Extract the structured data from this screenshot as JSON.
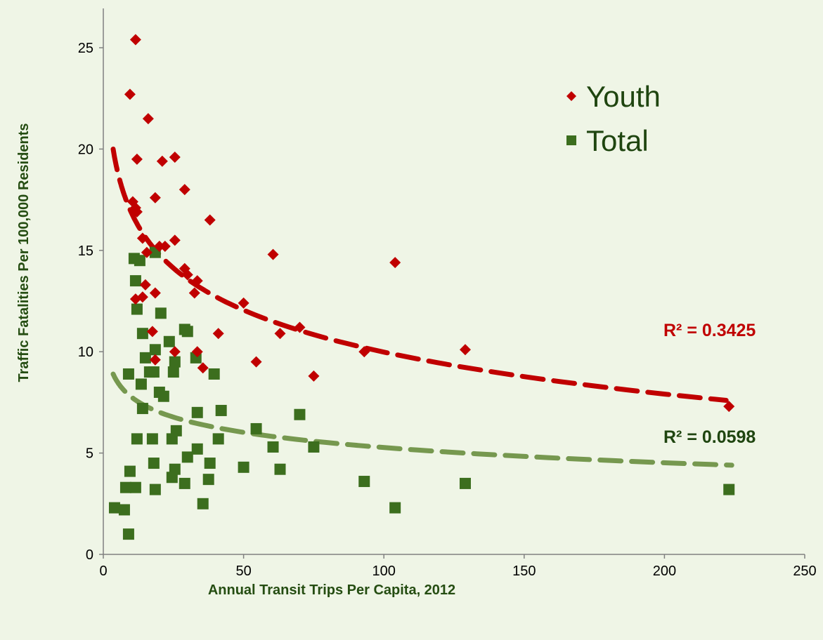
{
  "chart_data": {
    "type": "scatter",
    "xlabel": "Annual Transit Trips Per Capita, 2012",
    "ylabel": "Traffic Fatalities Per 100,000 Residents",
    "xlim": [
      0,
      250
    ],
    "ylim": [
      0,
      25
    ],
    "x_ticks": [
      "0",
      "50",
      "100",
      "150",
      "200",
      "250"
    ],
    "y_ticks": [
      "0",
      "5",
      "10",
      "15",
      "20",
      "25"
    ],
    "grid": false,
    "legend_position": "top-right",
    "series": [
      {
        "name": "Youth",
        "marker": "diamond",
        "color": "#c00000",
        "points": [
          [
            11.5,
            25.4
          ],
          [
            9.5,
            22.7
          ],
          [
            16,
            21.5
          ],
          [
            12,
            19.5
          ],
          [
            21,
            19.4
          ],
          [
            25.5,
            19.6
          ],
          [
            18.5,
            17.6
          ],
          [
            29,
            18.0
          ],
          [
            10.5,
            17.4
          ],
          [
            11.5,
            17.1
          ],
          [
            12,
            16.9
          ],
          [
            38,
            16.5
          ],
          [
            14,
            15.6
          ],
          [
            25.5,
            15.5
          ],
          [
            20,
            15.2
          ],
          [
            22,
            15.2
          ],
          [
            15.5,
            14.9
          ],
          [
            60.5,
            14.8
          ],
          [
            104,
            14.4
          ],
          [
            29,
            14.1
          ],
          [
            30,
            13.8
          ],
          [
            33.5,
            13.5
          ],
          [
            15,
            13.3
          ],
          [
            18.5,
            12.9
          ],
          [
            32.5,
            12.9
          ],
          [
            14,
            12.7
          ],
          [
            11.5,
            12.6
          ],
          [
            50,
            12.4
          ],
          [
            17.5,
            11.0
          ],
          [
            41,
            10.9
          ],
          [
            63,
            10.9
          ],
          [
            70,
            11.2
          ],
          [
            25.5,
            10.0
          ],
          [
            33.5,
            10.0
          ],
          [
            93,
            10.0
          ],
          [
            129,
            10.1
          ],
          [
            18.5,
            9.6
          ],
          [
            35.5,
            9.2
          ],
          [
            54.5,
            9.5
          ],
          [
            75,
            8.8
          ],
          [
            223,
            7.3
          ]
        ],
        "trendline": {
          "type": "logarithmic",
          "r_squared_label": "R² = 0.3425",
          "from_x": 3.5,
          "to_x": 222,
          "y_start": 20.0,
          "y_end": 7.6
        }
      },
      {
        "name": "Total",
        "marker": "square",
        "color": "#3c6e1e",
        "points": [
          [
            11,
            14.6
          ],
          [
            13,
            14.5
          ],
          [
            18.5,
            14.9
          ],
          [
            11.5,
            13.5
          ],
          [
            12,
            12.1
          ],
          [
            20.5,
            11.9
          ],
          [
            14,
            10.9
          ],
          [
            29,
            11.1
          ],
          [
            30,
            11.0
          ],
          [
            23.5,
            10.5
          ],
          [
            18.5,
            10.1
          ],
          [
            15,
            9.7
          ],
          [
            33,
            9.7
          ],
          [
            25.5,
            9.5
          ],
          [
            9,
            8.9
          ],
          [
            16.5,
            9.0
          ],
          [
            18,
            9.0
          ],
          [
            25,
            9.0
          ],
          [
            39.5,
            8.9
          ],
          [
            13.5,
            8.4
          ],
          [
            20,
            8.0
          ],
          [
            21.5,
            7.8
          ],
          [
            14,
            7.2
          ],
          [
            33.5,
            7.0
          ],
          [
            42,
            7.1
          ],
          [
            70,
            6.9
          ],
          [
            54.5,
            6.2
          ],
          [
            26,
            6.1
          ],
          [
            12,
            5.7
          ],
          [
            17.5,
            5.7
          ],
          [
            24.5,
            5.7
          ],
          [
            41,
            5.7
          ],
          [
            60.5,
            5.3
          ],
          [
            33.5,
            5.2
          ],
          [
            75,
            5.3
          ],
          [
            30,
            4.8
          ],
          [
            38,
            4.5
          ],
          [
            18,
            4.5
          ],
          [
            50,
            4.3
          ],
          [
            63,
            4.2
          ],
          [
            9.5,
            4.1
          ],
          [
            25.5,
            4.2
          ],
          [
            24.5,
            3.8
          ],
          [
            37.5,
            3.7
          ],
          [
            93,
            3.6
          ],
          [
            129,
            3.5
          ],
          [
            29,
            3.5
          ],
          [
            8,
            3.3
          ],
          [
            11.5,
            3.3
          ],
          [
            18.5,
            3.2
          ],
          [
            223,
            3.2
          ],
          [
            35.5,
            2.5
          ],
          [
            4,
            2.3
          ],
          [
            7.5,
            2.2
          ],
          [
            104,
            2.3
          ],
          [
            9,
            1.0
          ]
        ],
        "trendline": {
          "type": "logarithmic",
          "r_squared_label": "R² = 0.0598",
          "from_x": 3.5,
          "to_x": 224,
          "y_start": 8.9,
          "y_end": 4.4
        }
      }
    ]
  }
}
